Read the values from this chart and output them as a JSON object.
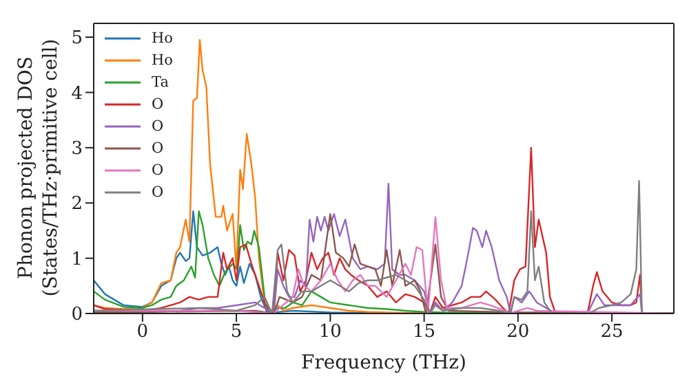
{
  "chart_data": {
    "type": "line",
    "xlabel": "Frequency (THz)",
    "ylabel": "Phonon projected DOS\n(States/THz·primitive cell)",
    "xlim": [
      -2.6,
      28.3
    ],
    "xticks": [
      0,
      5,
      10,
      15,
      20,
      25
    ],
    "ylim": [
      0,
      5.25
    ],
    "yticks": [
      0,
      1,
      2,
      3,
      4,
      5
    ],
    "grid": false,
    "legend": "top left",
    "marker": "none",
    "line_style": "solid",
    "series": [
      {
        "name": "Ho",
        "color": "#1f77b4",
        "x": [
          -2.6,
          -2,
          -1,
          0,
          0.5,
          1,
          1.5,
          1.8,
          2,
          2.3,
          2.5,
          2.7,
          2.9,
          3.2,
          3.6,
          4,
          4.2,
          4.4,
          4.6,
          4.8,
          5,
          5.2,
          5.4,
          5.7,
          6,
          6.3,
          6.6,
          7,
          8,
          10,
          12,
          28.3
        ],
        "values": [
          0.6,
          0.35,
          0.15,
          0.12,
          0.2,
          0.5,
          0.6,
          1.0,
          1.1,
          0.95,
          1.0,
          1.85,
          1.2,
          1.05,
          1.1,
          1.2,
          0.9,
          0.7,
          0.85,
          0.6,
          0.5,
          0.85,
          0.55,
          0.9,
          0.7,
          0.3,
          0.05,
          0.02,
          0.05,
          0.02,
          0.01,
          0
        ]
      },
      {
        "name": "Ho",
        "color": "#ff7f0e",
        "x": [
          -2.6,
          -2,
          -1,
          0,
          0.5,
          1,
          1.5,
          1.8,
          2,
          2.3,
          2.5,
          2.7,
          2.9,
          3.05,
          3.2,
          3.4,
          3.6,
          3.9,
          4.2,
          4.3,
          4.5,
          4.8,
          5,
          5.2,
          5.35,
          5.55,
          5.8,
          6,
          6.2,
          6.5,
          6.8,
          7.2,
          7.5,
          8,
          9,
          10,
          11,
          12,
          14,
          28.3
        ],
        "values": [
          0.15,
          0.1,
          0.08,
          0.1,
          0.2,
          0.55,
          0.6,
          1.1,
          1.2,
          1.7,
          1.3,
          3.85,
          3.9,
          4.95,
          4.4,
          4.1,
          2.7,
          1.75,
          1.75,
          1.95,
          1.5,
          1.8,
          0.8,
          2.6,
          2.25,
          3.25,
          2.7,
          2.1,
          1.0,
          0.2,
          0,
          0.15,
          0.05,
          0.1,
          0.15,
          0.1,
          0.05,
          0.03,
          0.01,
          0
        ]
      },
      {
        "name": "Ta",
        "color": "#2ca02c",
        "x": [
          -2.6,
          -2,
          -1,
          0,
          0.5,
          1,
          1.5,
          1.8,
          2.2,
          2.6,
          2.8,
          3,
          3.2,
          3.5,
          3.8,
          4.1,
          4.4,
          4.8,
          5.05,
          5.2,
          5.4,
          5.6,
          5.8,
          5.95,
          6.2,
          6.5,
          6.8,
          7.2,
          7.6,
          8,
          8.5,
          9,
          9.5,
          10,
          11,
          12,
          13,
          14,
          15,
          16,
          28.3
        ],
        "values": [
          0.4,
          0.25,
          0.12,
          0.1,
          0.15,
          0.25,
          0.3,
          0.5,
          0.6,
          0.85,
          0.65,
          1.85,
          1.6,
          1.0,
          0.7,
          0.5,
          0.75,
          0.9,
          0.8,
          1.6,
          1.15,
          1.3,
          1.25,
          1.5,
          1.2,
          0.3,
          0.05,
          0.1,
          0.1,
          0.2,
          0.15,
          0.4,
          0.3,
          0.2,
          0.15,
          0.1,
          0.08,
          0.05,
          0.03,
          0.02,
          0
        ]
      },
      {
        "name": "O",
        "color": "#d62728",
        "x": [
          -2.6,
          -2,
          0,
          1,
          2,
          2.5,
          3,
          3.5,
          4,
          4.3,
          4.5,
          4.8,
          5,
          5.2,
          5.5,
          5.8,
          6.1,
          6.5,
          6.8,
          7,
          7.2,
          7.5,
          7.8,
          8.1,
          8.4,
          8.7,
          9,
          9.3,
          9.6,
          9.9,
          10.2,
          10.5,
          10.8,
          11.1,
          11.5,
          12,
          12.5,
          13,
          13.5,
          14,
          14.5,
          15,
          15.3,
          15.6,
          16,
          17,
          17.5,
          18,
          18.3,
          18.8,
          19.2,
          19.5,
          19.8,
          20.1,
          20.4,
          20.7,
          20.9,
          21.1,
          21.5,
          21.7,
          22,
          23.7,
          24,
          24.2,
          24.5,
          25,
          25.5,
          26,
          26.3,
          26.5,
          26.6,
          28.3
        ],
        "values": [
          0.15,
          0.08,
          0.05,
          0.1,
          0.2,
          0.3,
          0.25,
          0.3,
          0.3,
          1.1,
          0.8,
          1.0,
          0.6,
          1.2,
          1.25,
          0.9,
          0.6,
          0.2,
          0,
          0.1,
          1.1,
          0.6,
          1.15,
          1.05,
          0.4,
          0.6,
          1.1,
          0.8,
          1.0,
          1.1,
          0.7,
          1.0,
          0.8,
          0.7,
          0.6,
          0.5,
          0.3,
          0.4,
          0.2,
          0.35,
          0.3,
          0.2,
          0,
          0.3,
          0.1,
          0.2,
          0.3,
          0.3,
          0.4,
          0.25,
          0.1,
          0,
          0.6,
          0.8,
          0.85,
          3.0,
          1.2,
          1.7,
          1.1,
          0.3,
          0,
          0,
          0.5,
          0.75,
          0.4,
          0.2,
          0.15,
          0.15,
          0.2,
          0.7,
          0,
          0
        ]
      },
      {
        "name": "O",
        "color": "#9467bd",
        "x": [
          -2.6,
          0,
          2,
          3,
          4,
          5,
          6,
          6.5,
          7,
          7.2,
          7.5,
          7.8,
          8.1,
          8.4,
          8.7,
          8.9,
          9.1,
          9.3,
          9.5,
          9.7,
          9.9,
          10.2,
          10.5,
          10.8,
          11.2,
          11.6,
          12,
          12.5,
          12.9,
          13.1,
          13.3,
          13.7,
          14,
          14.5,
          15,
          15.3,
          15.6,
          16,
          16.5,
          17,
          17.3,
          17.6,
          17.8,
          18.1,
          18.3,
          18.6,
          19,
          19.4,
          19.6,
          19.8,
          20.2,
          20.6,
          21,
          21.5,
          22,
          23.7,
          24.2,
          24.6,
          26,
          26.5,
          26.6,
          28.3
        ],
        "values": [
          0.05,
          0.02,
          0.05,
          0.1,
          0.1,
          0.15,
          0.2,
          0.1,
          0,
          0.8,
          0.5,
          0.3,
          0.3,
          0.6,
          0.5,
          1.7,
          1.3,
          1.75,
          1.5,
          1.75,
          1.5,
          1.8,
          1.4,
          1.7,
          1.0,
          0.8,
          0.85,
          0.8,
          0.9,
          2.35,
          0.8,
          0.7,
          0.7,
          0.6,
          0.4,
          0,
          0.2,
          0.05,
          0.2,
          0.5,
          1.0,
          1.55,
          1.5,
          1.2,
          1.5,
          1.2,
          0.6,
          0.3,
          0,
          0.3,
          0.2,
          0.4,
          0.2,
          0.1,
          0,
          0,
          0.35,
          0.15,
          0.15,
          0.35,
          0,
          0
        ]
      },
      {
        "name": "O",
        "color": "#8c564b",
        "x": [
          -2.6,
          6,
          7,
          7.3,
          8,
          8.5,
          9,
          9.5,
          10,
          10.3,
          10.7,
          11,
          11.3,
          11.6,
          12,
          12.4,
          12.7,
          13,
          13.3,
          13.7,
          14,
          14.5,
          14.8,
          15.1,
          15.6,
          15.9,
          16.3,
          20,
          21,
          28.3
        ],
        "values": [
          0.02,
          0.05,
          0,
          0.3,
          0.2,
          0.3,
          0.7,
          0.6,
          1.8,
          1.1,
          1.0,
          0.85,
          1.25,
          0.9,
          0.85,
          0.8,
          0.5,
          1.15,
          0.5,
          1.15,
          0.5,
          0.6,
          0.4,
          0,
          1.25,
          0.3,
          0.05,
          0.02,
          0.02,
          0
        ]
      },
      {
        "name": "O",
        "color": "#e377c2",
        "x": [
          -2.6,
          5,
          7,
          7.3,
          8,
          8.3,
          8.6,
          9,
          9.5,
          10,
          10.4,
          10.8,
          11.2,
          11.6,
          12,
          12.4,
          13,
          13.5,
          14,
          14.3,
          14.6,
          14.9,
          15.2,
          15.6,
          15.9,
          16.2,
          17,
          18,
          18.5,
          19.3,
          19.5,
          20.5,
          21,
          28.3
        ],
        "values": [
          0.05,
          0.05,
          0,
          0.1,
          0.3,
          0.8,
          0.5,
          0.4,
          0.6,
          0.9,
          0.6,
          0.4,
          0.6,
          0.7,
          0.5,
          0.5,
          0.3,
          0.6,
          0.9,
          0.7,
          1.2,
          1.15,
          0,
          1.75,
          0.6,
          0.1,
          0.1,
          0.2,
          0.15,
          0.05,
          0,
          0.1,
          0.05,
          0
        ]
      },
      {
        "name": "O",
        "color": "#7f7f7f",
        "x": [
          -2.6,
          3,
          5,
          6,
          6.5,
          6.9,
          7.2,
          7.4,
          7.7,
          8,
          8.5,
          9,
          9.5,
          10,
          10.5,
          11,
          11.5,
          12,
          12.5,
          13,
          13.5,
          14,
          14.5,
          15,
          15.3,
          15.6,
          16,
          17,
          18,
          19,
          19.6,
          19.8,
          20.2,
          20.5,
          20.7,
          20.9,
          21.1,
          21.4,
          21.8,
          23.8,
          24.3,
          25,
          25.5,
          26,
          26.3,
          26.45,
          26.6,
          28.3
        ],
        "values": [
          0.05,
          0.1,
          0.05,
          0.15,
          0.3,
          0,
          1.15,
          1.25,
          0.4,
          0.2,
          0.4,
          0.4,
          0.5,
          0.6,
          0.5,
          0.4,
          0.55,
          0.6,
          0.6,
          0.65,
          0.7,
          0.6,
          0.5,
          0.25,
          0,
          0.15,
          0.05,
          0.1,
          0.1,
          0.05,
          0,
          0.3,
          0.25,
          0.4,
          1.85,
          0.6,
          0.85,
          0.2,
          0,
          0,
          0.1,
          0.15,
          0.2,
          0.35,
          0.8,
          2.4,
          0,
          0
        ]
      }
    ]
  }
}
